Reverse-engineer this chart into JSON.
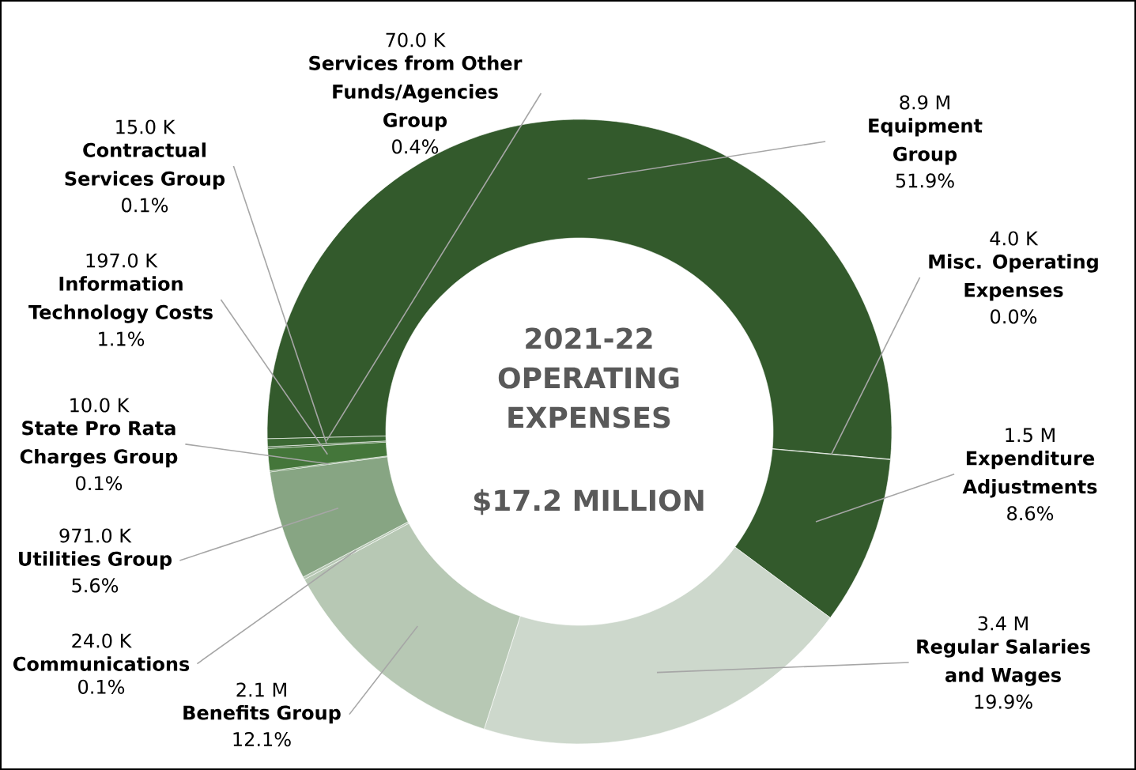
{
  "chart_data": {
    "type": "donut",
    "title": "2021-22 OPERATING EXPENSES",
    "subtitle": "$17.2 MILLION",
    "categories": [
      "Equipment Group",
      "Misc. Operating Expenses",
      "Expenditure Adjustments",
      "Regular Salaries and Wages",
      "Benefits Group",
      "Communications",
      "Utilities Group",
      "State Pro Rata Charges Group",
      "Information Technology Costs",
      "Contractual Services Group",
      "Services from Other Funds/Agencies Group"
    ],
    "values": [
      8.9,
      0.004,
      1.5,
      3.4,
      2.1,
      0.024,
      0.971,
      0.01,
      0.197,
      0.015,
      0.07
    ],
    "colors": [
      "#335a2c",
      "#335a2c",
      "#335a2c",
      "#cdd8cc",
      "#b7c8b4",
      "#b7c8b4",
      "#87a583",
      "#3d6e33",
      "#44763a",
      "#386230",
      "#3b6833"
    ],
    "value_labels": [
      "8.9 M",
      "4.0 K",
      "1.5 M",
      "3.4 M",
      "2.1 M",
      "24.0 K",
      "971.0 K",
      "10.0 K",
      "197.0 K",
      "15.0 K",
      "70.0 K"
    ],
    "annotations": [
      {
        "text": "51.9%",
        "x": "Equipment Group"
      },
      {
        "text": "0.0%",
        "x": "Misc. Operating Expenses"
      },
      {
        "text": "8.6%",
        "x": "Expenditure Adjustments"
      },
      {
        "text": "19.9%",
        "x": "Regular Salaries and Wages"
      },
      {
        "text": "12.1%",
        "x": "Benefits Group"
      },
      {
        "text": "0.1%",
        "x": "Communications"
      },
      {
        "text": "5.6%",
        "x": "Utilities Group"
      },
      {
        "text": "0.1%",
        "x": "State Pro Rata Charges Group"
      },
      {
        "text": "1.1%",
        "x": "Information Technology Costs"
      },
      {
        "text": "0.1%",
        "x": "Contractual Services Group"
      },
      {
        "text": "0.4%",
        "x": "Services from Other Funds/Agencies Group"
      }
    ]
  }
}
